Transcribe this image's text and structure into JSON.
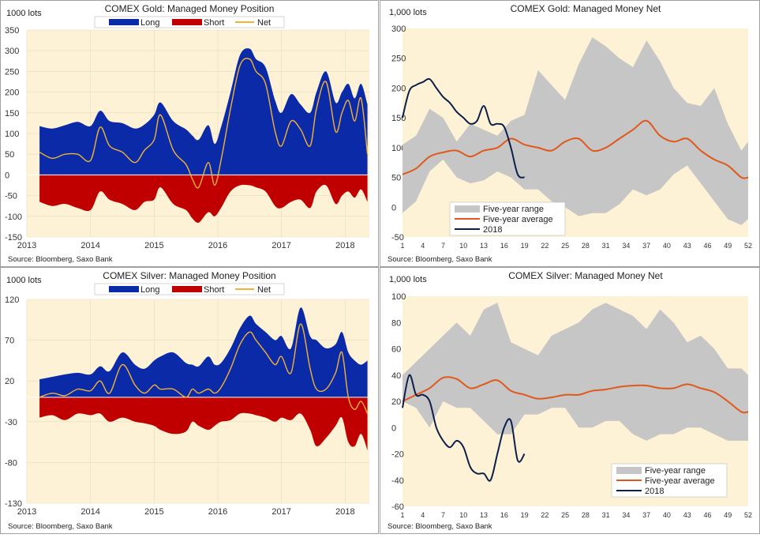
{
  "colors": {
    "panel_bg": "#ffffff",
    "plot_bg": "#fdf2d6",
    "border": "#a0a0a0",
    "long": "#0b2aa8",
    "short": "#c00000",
    "net": "#f2b233",
    "range": "#c6c6c6",
    "average": "#e0581c",
    "current": "#0c1e4a",
    "grid": "#e8dcbc"
  },
  "chart_data": [
    {
      "id": "gold-position",
      "type": "area",
      "title": "COMEX Gold: Managed Money Position",
      "ylabel": "1000 lots",
      "source": "Source: Bloomberg, Saxo Bank",
      "legend": [
        "Long",
        "Short",
        "Net"
      ],
      "ylim": [
        -150,
        350
      ],
      "yticks": [
        -150,
        -100,
        -50,
        0,
        50,
        100,
        150,
        200,
        250,
        300,
        350
      ],
      "xlim": [
        2013.0,
        2018.38
      ],
      "xticks": [
        2013,
        2014,
        2015,
        2016,
        2017,
        2018
      ],
      "series": [
        {
          "name": "Long",
          "x": [
            2013.2,
            2013.4,
            2013.6,
            2013.8,
            2014.0,
            2014.15,
            2014.3,
            2014.5,
            2014.7,
            2014.85,
            2015.0,
            2015.1,
            2015.3,
            2015.5,
            2015.6,
            2015.7,
            2015.85,
            2015.95,
            2016.05,
            2016.2,
            2016.35,
            2016.5,
            2016.6,
            2016.75,
            2016.9,
            2017.0,
            2017.15,
            2017.3,
            2017.45,
            2017.55,
            2017.7,
            2017.85,
            2017.95,
            2018.05,
            2018.15,
            2018.25,
            2018.35
          ],
          "values": [
            118,
            112,
            120,
            128,
            118,
            155,
            130,
            125,
            112,
            122,
            145,
            175,
            130,
            110,
            95,
            85,
            120,
            75,
            115,
            200,
            290,
            305,
            280,
            260,
            180,
            150,
            195,
            170,
            150,
            200,
            250,
            175,
            200,
            220,
            185,
            220,
            170
          ]
        },
        {
          "name": "Short",
          "x": [
            2013.2,
            2013.4,
            2013.6,
            2013.8,
            2014.0,
            2014.15,
            2014.3,
            2014.5,
            2014.7,
            2014.85,
            2015.0,
            2015.1,
            2015.3,
            2015.5,
            2015.6,
            2015.7,
            2015.85,
            2015.95,
            2016.05,
            2016.2,
            2016.35,
            2016.5,
            2016.6,
            2016.75,
            2016.9,
            2017.0,
            2017.15,
            2017.3,
            2017.45,
            2017.55,
            2017.7,
            2017.85,
            2017.95,
            2018.05,
            2018.15,
            2018.25,
            2018.35
          ],
          "values": [
            -65,
            -75,
            -70,
            -80,
            -85,
            -40,
            -60,
            -70,
            -85,
            -65,
            -60,
            -30,
            -70,
            -85,
            -105,
            -115,
            -90,
            -100,
            -80,
            -40,
            -25,
            -25,
            -30,
            -40,
            -75,
            -80,
            -65,
            -60,
            -80,
            -40,
            -25,
            -70,
            -50,
            -40,
            -55,
            -35,
            -65
          ]
        },
        {
          "name": "Net",
          "x": [
            2013.2,
            2013.4,
            2013.6,
            2013.8,
            2014.0,
            2014.15,
            2014.3,
            2014.5,
            2014.7,
            2014.85,
            2015.0,
            2015.1,
            2015.3,
            2015.5,
            2015.6,
            2015.7,
            2015.85,
            2015.95,
            2016.05,
            2016.2,
            2016.35,
            2016.5,
            2016.6,
            2016.75,
            2016.9,
            2017.0,
            2017.15,
            2017.3,
            2017.45,
            2017.55,
            2017.7,
            2017.85,
            2017.95,
            2018.05,
            2018.15,
            2018.25,
            2018.35
          ],
          "values": [
            55,
            40,
            50,
            50,
            35,
            115,
            70,
            55,
            30,
            60,
            85,
            145,
            60,
            25,
            -10,
            -30,
            30,
            -25,
            35,
            160,
            265,
            280,
            250,
            220,
            105,
            70,
            130,
            110,
            70,
            160,
            225,
            105,
            150,
            180,
            130,
            185,
            50
          ]
        }
      ]
    },
    {
      "id": "gold-net",
      "type": "line",
      "title": "COMEX Gold: Managed Money Net",
      "ylabel": "1,000 lots",
      "source": "Source: Bloomberg, Saxo Bank",
      "ylim": [
        -50,
        300
      ],
      "yticks": [
        -50,
        0,
        50,
        100,
        150,
        200,
        250,
        300
      ],
      "xlim": [
        1,
        52
      ],
      "xticks": [
        1,
        4,
        7,
        10,
        13,
        16,
        19,
        22,
        25,
        28,
        31,
        34,
        37,
        40,
        43,
        46,
        49,
        52
      ],
      "series": [
        {
          "name": "Five-year range",
          "x": [
            1,
            3,
            5,
            7,
            9,
            11,
            13,
            15,
            17,
            19,
            21,
            23,
            25,
            27,
            29,
            31,
            33,
            35,
            37,
            39,
            41,
            43,
            45,
            47,
            49,
            51,
            52
          ],
          "high": [
            105,
            120,
            165,
            150,
            110,
            140,
            130,
            120,
            145,
            155,
            230,
            205,
            180,
            240,
            285,
            270,
            250,
            235,
            280,
            245,
            200,
            175,
            170,
            200,
            140,
            95,
            110
          ],
          "low": [
            -10,
            10,
            60,
            80,
            50,
            40,
            45,
            60,
            50,
            30,
            30,
            10,
            0,
            -15,
            -10,
            -10,
            5,
            30,
            20,
            30,
            55,
            70,
            40,
            10,
            -20,
            -30,
            -20
          ]
        },
        {
          "name": "Five-year average",
          "x": [
            1,
            3,
            5,
            7,
            9,
            11,
            13,
            15,
            17,
            19,
            21,
            23,
            25,
            27,
            29,
            31,
            33,
            35,
            37,
            39,
            41,
            43,
            45,
            47,
            49,
            51,
            52
          ],
          "values": [
            55,
            65,
            85,
            92,
            95,
            85,
            95,
            100,
            115,
            105,
            100,
            95,
            110,
            115,
            95,
            100,
            115,
            130,
            145,
            120,
            110,
            115,
            95,
            80,
            70,
            50,
            50
          ]
        },
        {
          "name": "2018",
          "x": [
            1,
            2,
            3,
            4,
            5,
            6,
            7,
            8,
            9,
            10,
            11,
            12,
            13,
            14,
            15,
            16,
            17,
            18,
            19
          ],
          "values": [
            150,
            195,
            205,
            210,
            215,
            200,
            185,
            175,
            160,
            150,
            140,
            145,
            170,
            140,
            140,
            135,
            100,
            55,
            50
          ]
        }
      ]
    },
    {
      "id": "silver-position",
      "type": "area",
      "title": "COMEX Silver: Managed Money Position",
      "ylabel": "1000 lots",
      "source": "Source: Bloomberg, Saxo Bank",
      "legend": [
        "Long",
        "Short",
        "Net"
      ],
      "ylim": [
        -130,
        120
      ],
      "yticks": [
        -130,
        -80,
        -30,
        20,
        70,
        120
      ],
      "xlim": [
        2013.0,
        2018.38
      ],
      "xticks": [
        2013,
        2014,
        2015,
        2016,
        2017,
        2018
      ],
      "series": [
        {
          "name": "Long",
          "x": [
            2013.2,
            2013.4,
            2013.6,
            2013.8,
            2014.0,
            2014.15,
            2014.3,
            2014.5,
            2014.7,
            2014.85,
            2015.0,
            2015.1,
            2015.3,
            2015.5,
            2015.6,
            2015.7,
            2015.85,
            2015.95,
            2016.05,
            2016.2,
            2016.35,
            2016.5,
            2016.6,
            2016.75,
            2016.9,
            2017.0,
            2017.15,
            2017.3,
            2017.45,
            2017.55,
            2017.7,
            2017.85,
            2017.95,
            2018.05,
            2018.15,
            2018.25,
            2018.35
          ],
          "values": [
            22,
            25,
            28,
            30,
            28,
            38,
            32,
            55,
            40,
            35,
            45,
            50,
            55,
            42,
            40,
            38,
            50,
            40,
            42,
            60,
            85,
            100,
            90,
            80,
            70,
            75,
            60,
            110,
            75,
            70,
            60,
            65,
            80,
            55,
            45,
            40,
            45
          ]
        },
        {
          "name": "Short",
          "x": [
            2013.2,
            2013.4,
            2013.6,
            2013.8,
            2014.0,
            2014.15,
            2014.3,
            2014.5,
            2014.7,
            2014.85,
            2015.0,
            2015.1,
            2015.3,
            2015.5,
            2015.6,
            2015.7,
            2015.85,
            2015.95,
            2016.05,
            2016.2,
            2016.35,
            2016.5,
            2016.6,
            2016.75,
            2016.9,
            2017.0,
            2017.15,
            2017.3,
            2017.45,
            2017.55,
            2017.7,
            2017.85,
            2017.95,
            2018.05,
            2018.15,
            2018.25,
            2018.35
          ],
          "values": [
            -25,
            -22,
            -28,
            -20,
            -22,
            -20,
            -30,
            -25,
            -30,
            -32,
            -35,
            -40,
            -45,
            -42,
            -30,
            -35,
            -40,
            -35,
            -30,
            -28,
            -20,
            -20,
            -22,
            -25,
            -30,
            -25,
            -28,
            -20,
            -40,
            -60,
            -50,
            -35,
            -25,
            -55,
            -60,
            -45,
            -65
          ]
        },
        {
          "name": "Net",
          "x": [
            2013.2,
            2013.4,
            2013.6,
            2013.8,
            2014.0,
            2014.15,
            2014.3,
            2014.5,
            2014.7,
            2014.85,
            2015.0,
            2015.1,
            2015.3,
            2015.5,
            2015.6,
            2015.7,
            2015.85,
            2015.95,
            2016.05,
            2016.2,
            2016.35,
            2016.5,
            2016.6,
            2016.75,
            2016.9,
            2017.0,
            2017.15,
            2017.3,
            2017.45,
            2017.55,
            2017.7,
            2017.85,
            2017.95,
            2018.05,
            2018.15,
            2018.25,
            2018.35
          ],
          "values": [
            0,
            5,
            2,
            10,
            8,
            20,
            5,
            40,
            15,
            5,
            15,
            10,
            10,
            0,
            10,
            5,
            10,
            5,
            12,
            35,
            65,
            80,
            70,
            55,
            40,
            50,
            30,
            90,
            35,
            10,
            10,
            30,
            55,
            0,
            -15,
            -5,
            -20
          ]
        }
      ]
    },
    {
      "id": "silver-net",
      "type": "line",
      "title": "COMEX Silver: Managed Money Net",
      "ylabel": "1,000 lots",
      "source": "Source: Bloomberg, Saxo Bank",
      "ylim": [
        -60,
        100
      ],
      "yticks": [
        -60,
        -40,
        -20,
        0,
        20,
        40,
        60,
        80,
        100
      ],
      "xlim": [
        1,
        52
      ],
      "xticks": [
        1,
        4,
        7,
        10,
        13,
        16,
        19,
        22,
        25,
        28,
        31,
        34,
        37,
        40,
        43,
        46,
        49,
        52
      ],
      "series": [
        {
          "name": "Five-year range",
          "x": [
            1,
            3,
            5,
            7,
            9,
            11,
            13,
            15,
            17,
            19,
            21,
            23,
            25,
            27,
            29,
            31,
            33,
            35,
            37,
            39,
            41,
            43,
            45,
            47,
            49,
            51,
            52
          ],
          "high": [
            40,
            50,
            60,
            70,
            80,
            70,
            90,
            95,
            65,
            60,
            55,
            70,
            75,
            80,
            90,
            95,
            90,
            85,
            75,
            90,
            80,
            65,
            70,
            60,
            45,
            45,
            40
          ],
          "low": [
            20,
            15,
            0,
            20,
            15,
            15,
            5,
            -5,
            -5,
            10,
            10,
            15,
            15,
            0,
            0,
            5,
            5,
            -5,
            -10,
            -5,
            -5,
            0,
            0,
            -5,
            -10,
            -10,
            -10
          ]
        },
        {
          "name": "Five-year average",
          "x": [
            1,
            3,
            5,
            7,
            9,
            11,
            13,
            15,
            17,
            19,
            21,
            23,
            25,
            27,
            29,
            31,
            33,
            35,
            37,
            39,
            41,
            43,
            45,
            47,
            49,
            51,
            52
          ],
          "values": [
            20,
            25,
            30,
            38,
            37,
            30,
            33,
            36,
            28,
            25,
            22,
            23,
            25,
            25,
            28,
            29,
            31,
            32,
            32,
            30,
            30,
            33,
            30,
            27,
            20,
            12,
            12
          ]
        },
        {
          "name": "2018",
          "x": [
            1,
            2,
            3,
            4,
            5,
            6,
            7,
            8,
            9,
            10,
            11,
            12,
            13,
            14,
            15,
            16,
            17,
            18,
            19
          ],
          "values": [
            15,
            40,
            25,
            25,
            20,
            0,
            -10,
            -15,
            -10,
            -15,
            -30,
            -35,
            -35,
            -40,
            -20,
            0,
            5,
            -25,
            -20
          ]
        }
      ]
    }
  ]
}
